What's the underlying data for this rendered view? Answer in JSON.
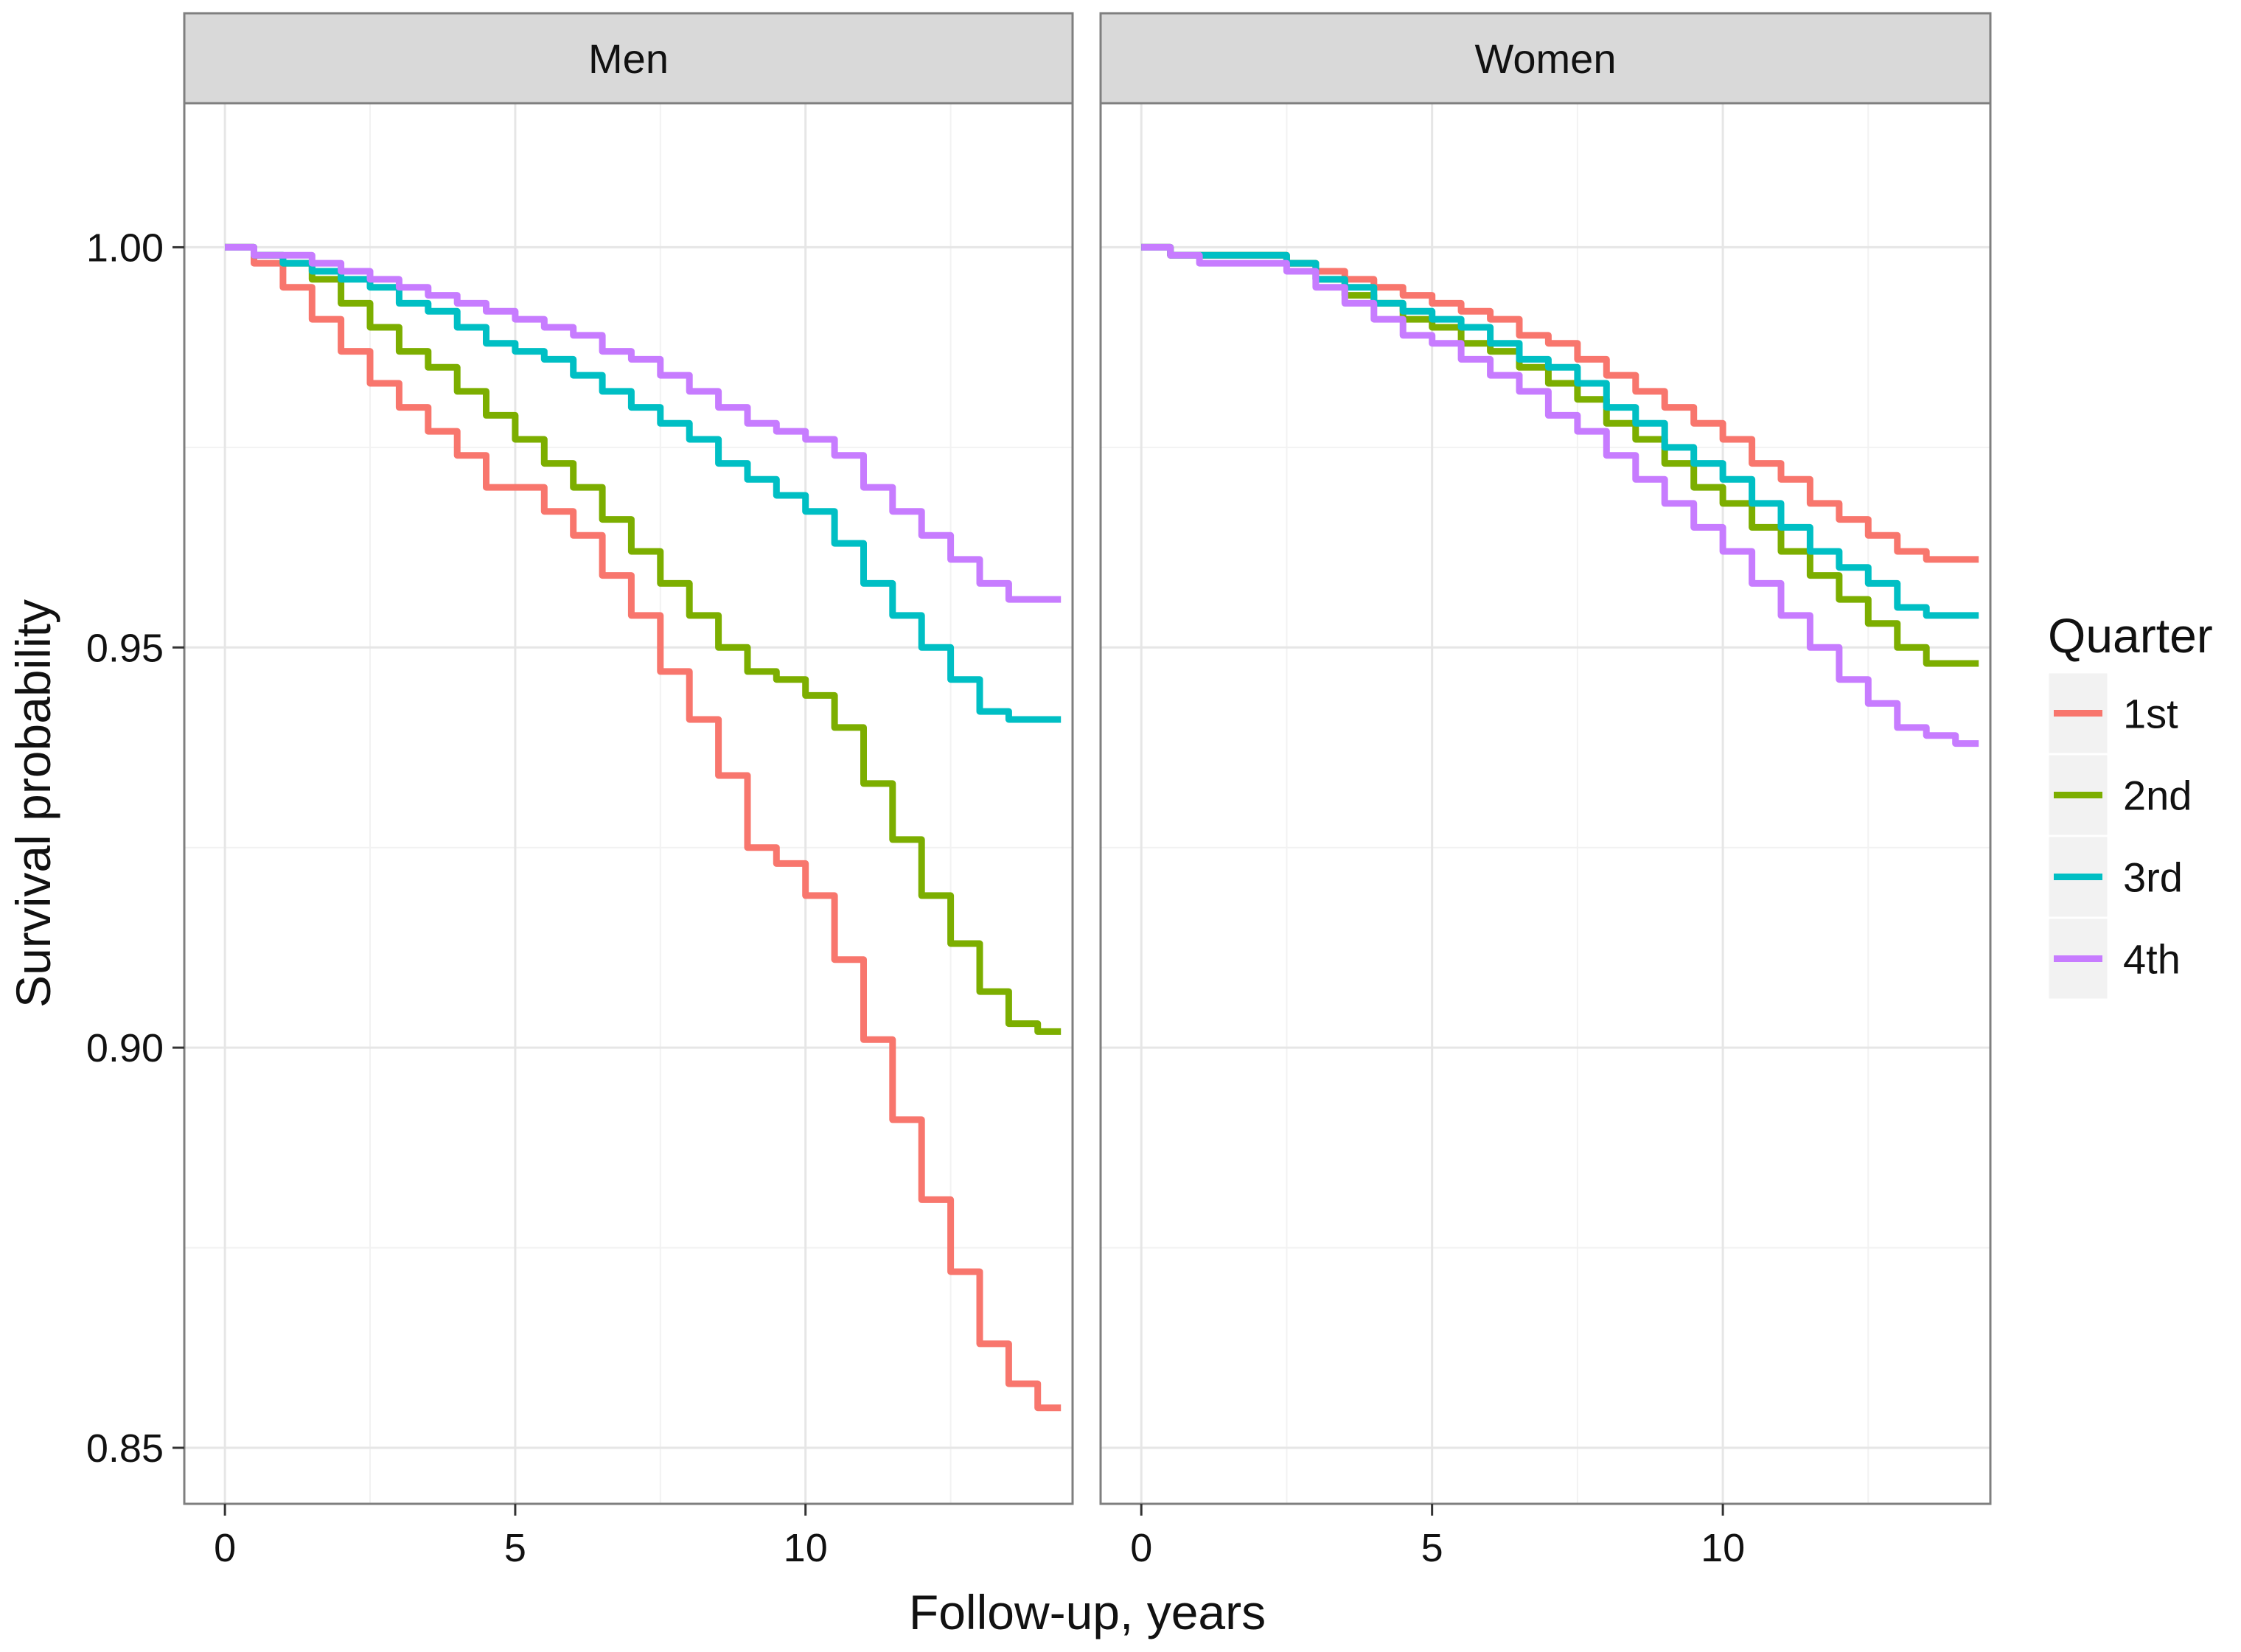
{
  "chart_data": {
    "type": "line",
    "xlabel": "Follow-up, years",
    "ylabel": "Survival probability",
    "xlim": [
      -0.7,
      14.6
    ],
    "ylim": [
      0.843,
      1.018
    ],
    "xticks": [
      0,
      5,
      10
    ],
    "xtick_labels": [
      "0",
      "5",
      "10"
    ],
    "yticks": [
      0.85,
      0.9,
      0.95,
      1.0
    ],
    "ytick_labels": [
      "0.85",
      "0.90",
      "0.95",
      "1.00"
    ],
    "grid": true,
    "legend": {
      "title": "Quarter",
      "position": "right",
      "entries": [
        {
          "label": "1st",
          "color": "#F8766D"
        },
        {
          "label": "2nd",
          "color": "#7CAE00"
        },
        {
          "label": "3rd",
          "color": "#00BFC4"
        },
        {
          "label": "4th",
          "color": "#C77CFF"
        }
      ]
    },
    "panels": [
      {
        "label": "Men",
        "series": [
          {
            "name": "1st",
            "color": "#F8766D",
            "x": [
              0,
              0.5,
              1,
              1.5,
              2,
              2.5,
              3,
              3.5,
              4,
              4.5,
              5,
              5.5,
              6,
              6.5,
              7,
              7.5,
              8,
              8.5,
              9,
              9.5,
              10,
              10.5,
              11,
              11.5,
              12,
              12.5,
              13,
              13.5,
              14
            ],
            "y": [
              1.0,
              0.998,
              0.995,
              0.991,
              0.987,
              0.983,
              0.98,
              0.977,
              0.974,
              0.97,
              0.97,
              0.967,
              0.964,
              0.959,
              0.954,
              0.947,
              0.941,
              0.934,
              0.925,
              0.923,
              0.919,
              0.911,
              0.901,
              0.891,
              0.881,
              0.872,
              0.863,
              0.858,
              0.855
            ]
          },
          {
            "name": "2nd",
            "color": "#7CAE00",
            "x": [
              0,
              0.5,
              1,
              1.5,
              2,
              2.5,
              3,
              3.5,
              4,
              4.5,
              5,
              5.5,
              6,
              6.5,
              7,
              7.5,
              8,
              8.5,
              9,
              9.5,
              10,
              10.5,
              11,
              11.5,
              12,
              12.5,
              13,
              13.5,
              14
            ],
            "y": [
              1.0,
              0.999,
              0.998,
              0.996,
              0.993,
              0.99,
              0.987,
              0.985,
              0.982,
              0.979,
              0.976,
              0.973,
              0.97,
              0.966,
              0.962,
              0.958,
              0.954,
              0.95,
              0.947,
              0.946,
              0.944,
              0.94,
              0.933,
              0.926,
              0.919,
              0.913,
              0.907,
              0.903,
              0.902
            ]
          },
          {
            "name": "3rd",
            "color": "#00BFC4",
            "x": [
              0,
              0.5,
              1,
              1.5,
              2,
              2.5,
              3,
              3.5,
              4,
              4.5,
              5,
              5.5,
              6,
              6.5,
              7,
              7.5,
              8,
              8.5,
              9,
              9.5,
              10,
              10.5,
              11,
              11.5,
              12,
              12.5,
              13,
              13.5,
              14
            ],
            "y": [
              1.0,
              0.999,
              0.998,
              0.997,
              0.996,
              0.995,
              0.993,
              0.992,
              0.99,
              0.988,
              0.987,
              0.986,
              0.984,
              0.982,
              0.98,
              0.978,
              0.976,
              0.973,
              0.971,
              0.969,
              0.967,
              0.963,
              0.958,
              0.954,
              0.95,
              0.946,
              0.942,
              0.941,
              0.941
            ]
          },
          {
            "name": "4th",
            "color": "#C77CFF",
            "x": [
              0,
              0.5,
              1,
              1.5,
              2,
              2.5,
              3,
              3.5,
              4,
              4.5,
              5,
              5.5,
              6,
              6.5,
              7,
              7.5,
              8,
              8.5,
              9,
              9.5,
              10,
              10.5,
              11,
              11.5,
              12,
              12.5,
              13,
              13.5,
              14
            ],
            "y": [
              1.0,
              0.999,
              0.999,
              0.998,
              0.997,
              0.996,
              0.995,
              0.994,
              0.993,
              0.992,
              0.991,
              0.99,
              0.989,
              0.987,
              0.986,
              0.984,
              0.982,
              0.98,
              0.978,
              0.977,
              0.976,
              0.974,
              0.97,
              0.967,
              0.964,
              0.961,
              0.958,
              0.956,
              0.956
            ]
          }
        ]
      },
      {
        "label": "Women",
        "series": [
          {
            "name": "1st",
            "color": "#F8766D",
            "x": [
              0,
              0.5,
              1,
              1.5,
              2,
              2.5,
              3,
              3.5,
              4,
              4.5,
              5,
              5.5,
              6,
              6.5,
              7,
              7.5,
              8,
              8.5,
              9,
              9.5,
              10,
              10.5,
              11,
              11.5,
              12,
              12.5,
              13,
              13.5,
              14
            ],
            "y": [
              1.0,
              0.999,
              0.999,
              0.999,
              0.999,
              0.998,
              0.997,
              0.996,
              0.995,
              0.994,
              0.993,
              0.992,
              0.991,
              0.989,
              0.988,
              0.986,
              0.984,
              0.982,
              0.98,
              0.978,
              0.976,
              0.973,
              0.971,
              0.968,
              0.966,
              0.964,
              0.962,
              0.961,
              0.961
            ]
          },
          {
            "name": "2nd",
            "color": "#7CAE00",
            "x": [
              0,
              0.5,
              1,
              1.5,
              2,
              2.5,
              3,
              3.5,
              4,
              4.5,
              5,
              5.5,
              6,
              6.5,
              7,
              7.5,
              8,
              8.5,
              9,
              9.5,
              10,
              10.5,
              11,
              11.5,
              12,
              12.5,
              13,
              13.5,
              14
            ],
            "y": [
              1.0,
              0.999,
              0.999,
              0.999,
              0.999,
              0.998,
              0.996,
              0.994,
              0.993,
              0.991,
              0.99,
              0.988,
              0.987,
              0.985,
              0.983,
              0.981,
              0.978,
              0.976,
              0.973,
              0.97,
              0.968,
              0.965,
              0.962,
              0.959,
              0.956,
              0.953,
              0.95,
              0.948,
              0.948
            ]
          },
          {
            "name": "3rd",
            "color": "#00BFC4",
            "x": [
              0,
              0.5,
              1,
              1.5,
              2,
              2.5,
              3,
              3.5,
              4,
              4.5,
              5,
              5.5,
              6,
              6.5,
              7,
              7.5,
              8,
              8.5,
              9,
              9.5,
              10,
              10.5,
              11,
              11.5,
              12,
              12.5,
              13,
              13.5,
              14
            ],
            "y": [
              1.0,
              0.999,
              0.999,
              0.999,
              0.999,
              0.998,
              0.996,
              0.995,
              0.993,
              0.992,
              0.991,
              0.99,
              0.988,
              0.986,
              0.985,
              0.983,
              0.98,
              0.978,
              0.975,
              0.973,
              0.971,
              0.968,
              0.965,
              0.962,
              0.96,
              0.958,
              0.955,
              0.954,
              0.954
            ]
          },
          {
            "name": "4th",
            "color": "#C77CFF",
            "x": [
              0,
              0.5,
              1,
              1.5,
              2,
              2.5,
              3,
              3.5,
              4,
              4.5,
              5,
              5.5,
              6,
              6.5,
              7,
              7.5,
              8,
              8.5,
              9,
              9.5,
              10,
              10.5,
              11,
              11.5,
              12,
              12.5,
              13,
              13.5,
              14
            ],
            "y": [
              1.0,
              0.999,
              0.998,
              0.998,
              0.998,
              0.997,
              0.995,
              0.993,
              0.991,
              0.989,
              0.988,
              0.986,
              0.984,
              0.982,
              0.979,
              0.977,
              0.974,
              0.971,
              0.968,
              0.965,
              0.962,
              0.958,
              0.954,
              0.95,
              0.946,
              0.943,
              0.94,
              0.939,
              0.938
            ]
          }
        ]
      }
    ]
  }
}
